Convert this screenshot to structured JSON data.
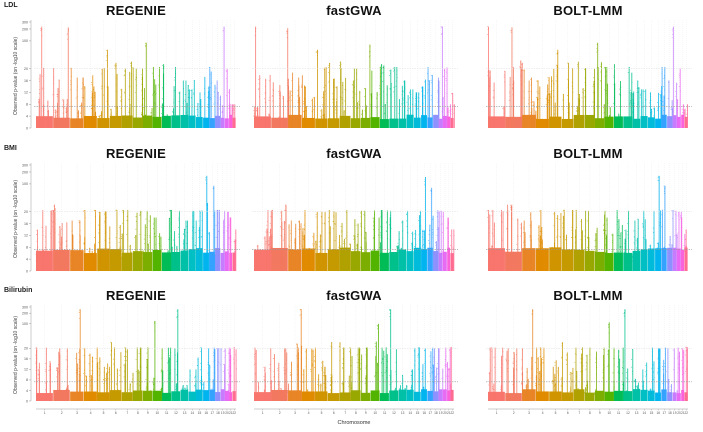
{
  "rows": [
    {
      "label": "LDL"
    },
    {
      "label": "BMI"
    },
    {
      "label": "Bilirubin"
    }
  ],
  "methods": [
    "REGENIE",
    "fastGWA",
    "BOLT-LMM"
  ],
  "y_axis_label": "Observed p-value (on -log10 scale)",
  "x_axis_label": "Chromosome",
  "chart_data": [
    {
      "type": "scatter",
      "subtype": "manhattan",
      "trait": "LDL",
      "xlabel": "Chromosome",
      "ylabel": "Observed p-value (on -log10 scale)",
      "y_scale": "linear 0-20, log above 20",
      "ylim": [
        0,
        300
      ],
      "y_ticks": [
        0,
        4,
        8,
        12,
        16,
        20,
        100,
        200,
        300
      ],
      "x_ticks": [
        "1",
        "2",
        "3",
        "4",
        "5",
        "6",
        "7",
        "8",
        "9",
        "10",
        "11",
        "12",
        "13",
        "14",
        "15",
        "16",
        "17",
        "18",
        "19",
        "20",
        "21",
        "22"
      ],
      "significance_line": 7.3,
      "scale_break_line": 20,
      "panels": [
        {
          "method": "REGENIE",
          "peak_per_chromosome": [
            230,
            220,
            17,
            14,
            60,
            28,
            30,
            20,
            90,
            22,
            26,
            22,
            16,
            13,
            12,
            14,
            22,
            16,
            230,
            20,
            8,
            8
          ]
        },
        {
          "method": "fastGWA",
          "peak_per_chromosome": [
            230,
            210,
            17,
            14,
            60,
            28,
            30,
            20,
            80,
            22,
            26,
            22,
            16,
            13,
            12,
            14,
            22,
            16,
            230,
            20,
            8,
            8
          ]
        },
        {
          "method": "BOLT-LMM",
          "peak_per_chromosome": [
            230,
            220,
            17,
            14,
            60,
            28,
            30,
            20,
            90,
            22,
            26,
            22,
            16,
            13,
            12,
            14,
            22,
            16,
            230,
            20,
            8,
            8
          ]
        }
      ]
    },
    {
      "type": "scatter",
      "subtype": "manhattan",
      "trait": "BMI",
      "xlabel": "Chromosome",
      "ylabel": "Observed p-value (on -log10 scale)",
      "y_scale": "linear 0-20, log above 20",
      "ylim": [
        0,
        300
      ],
      "y_ticks": [
        0,
        4,
        8,
        12,
        16,
        20,
        100,
        200,
        300
      ],
      "x_ticks": [
        "1",
        "2",
        "3",
        "4",
        "5",
        "6",
        "7",
        "8",
        "9",
        "10",
        "11",
        "12",
        "13",
        "14",
        "15",
        "16",
        "17",
        "18",
        "19",
        "20",
        "21",
        "22"
      ],
      "significance_line": 7.3,
      "scale_break_line": 20,
      "panels": [
        {
          "method": "REGENIE",
          "peak_per_chromosome": [
            22,
            30,
            17,
            22,
            20,
            22,
            22,
            21,
            21,
            18,
            22,
            21,
            17,
            21,
            21,
            160,
            90,
            22,
            21,
            20,
            18,
            14
          ]
        },
        {
          "method": "fastGWA",
          "peak_per_chromosome": [
            22,
            30,
            17,
            22,
            20,
            22,
            22,
            21,
            21,
            18,
            22,
            21,
            17,
            21,
            21,
            150,
            80,
            22,
            21,
            20,
            18,
            14
          ]
        },
        {
          "method": "BOLT-LMM",
          "peak_per_chromosome": [
            22,
            30,
            17,
            22,
            20,
            22,
            22,
            21,
            21,
            18,
            22,
            21,
            17,
            21,
            21,
            160,
            90,
            22,
            21,
            20,
            18,
            14
          ]
        }
      ]
    },
    {
      "type": "scatter",
      "subtype": "manhattan",
      "trait": "Bilirubin",
      "xlabel": "Chromosome",
      "ylabel": "Observed p-value (on -log10 scale)",
      "y_scale": "linear 0-20, log above 20",
      "ylim": [
        0,
        300
      ],
      "y_ticks": [
        0,
        4,
        8,
        12,
        16,
        20,
        100,
        200,
        300
      ],
      "x_ticks": [
        "1",
        "2",
        "3",
        "4",
        "5",
        "6",
        "7",
        "8",
        "9",
        "10",
        "11",
        "12",
        "13",
        "14",
        "15",
        "16",
        "17",
        "18",
        "19",
        "20",
        "21",
        "22"
      ],
      "significance_line": 7.3,
      "scale_break_line": 20,
      "panels": [
        {
          "method": "REGENIE",
          "peak_per_chromosome": [
            21,
            20,
            260,
            21,
            13,
            30,
            21,
            21,
            21,
            120,
            21,
            260,
            6,
            12,
            21,
            20,
            21,
            20,
            20,
            21,
            20,
            22
          ]
        },
        {
          "method": "fastGWA",
          "peak_per_chromosome": [
            21,
            20,
            260,
            21,
            13,
            30,
            21,
            21,
            21,
            100,
            21,
            260,
            6,
            12,
            21,
            20,
            21,
            20,
            20,
            21,
            20,
            22
          ]
        },
        {
          "method": "BOLT-LMM",
          "peak_per_chromosome": [
            21,
            20,
            260,
            21,
            13,
            30,
            21,
            21,
            21,
            110,
            21,
            260,
            6,
            12,
            21,
            20,
            21,
            20,
            20,
            21,
            20,
            22
          ]
        }
      ]
    }
  ],
  "chromosome_colors": [
    "#f8766d",
    "#f2785f",
    "#e88526",
    "#e08b00",
    "#d09400",
    "#c49a00",
    "#b0a100",
    "#99a800",
    "#7cae00",
    "#53b400",
    "#00bc56",
    "#00c08b",
    "#00c0a8",
    "#00bfc4",
    "#00bbda",
    "#00b4ef",
    "#35a2ff",
    "#8f91ff",
    "#c77cff",
    "#e76bf3",
    "#fa62db",
    "#ff6c91"
  ]
}
